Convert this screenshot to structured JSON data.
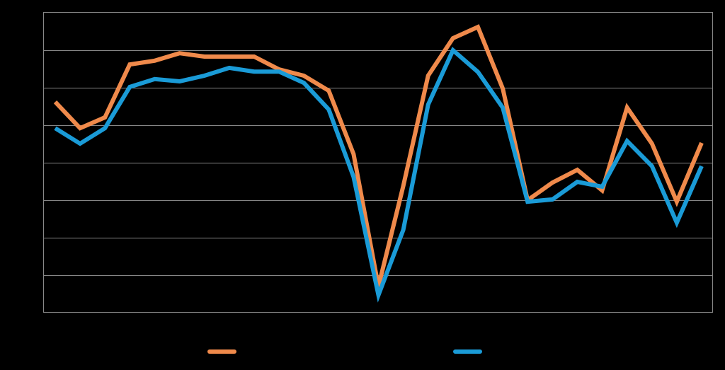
{
  "chart_data": {
    "type": "line",
    "series": [
      {
        "color": "#f08a4b",
        "values": [
          5.62,
          4.92,
          5.21,
          6.62,
          6.72,
          6.92,
          6.83,
          6.83,
          6.83,
          6.49,
          6.32,
          5.92,
          4.23,
          0.7,
          3.38,
          6.32,
          7.32,
          7.62,
          5.98,
          3.0,
          3.47,
          3.81,
          3.26,
          5.47,
          4.51,
          2.96,
          4.53
        ]
      },
      {
        "color": "#1a9bd7",
        "values": [
          4.92,
          4.51,
          4.92,
          6.02,
          6.23,
          6.17,
          6.32,
          6.53,
          6.43,
          6.43,
          6.13,
          5.42,
          3.62,
          0.47,
          2.21,
          5.55,
          7.0,
          6.42,
          5.47,
          2.96,
          3.02,
          3.49,
          3.36,
          4.58,
          3.91,
          2.4,
          3.91
        ]
      }
    ],
    "ylim": [
      0,
      8
    ],
    "yticks": [
      1,
      2,
      3,
      4,
      5,
      6,
      7
    ],
    "grid": true
  }
}
